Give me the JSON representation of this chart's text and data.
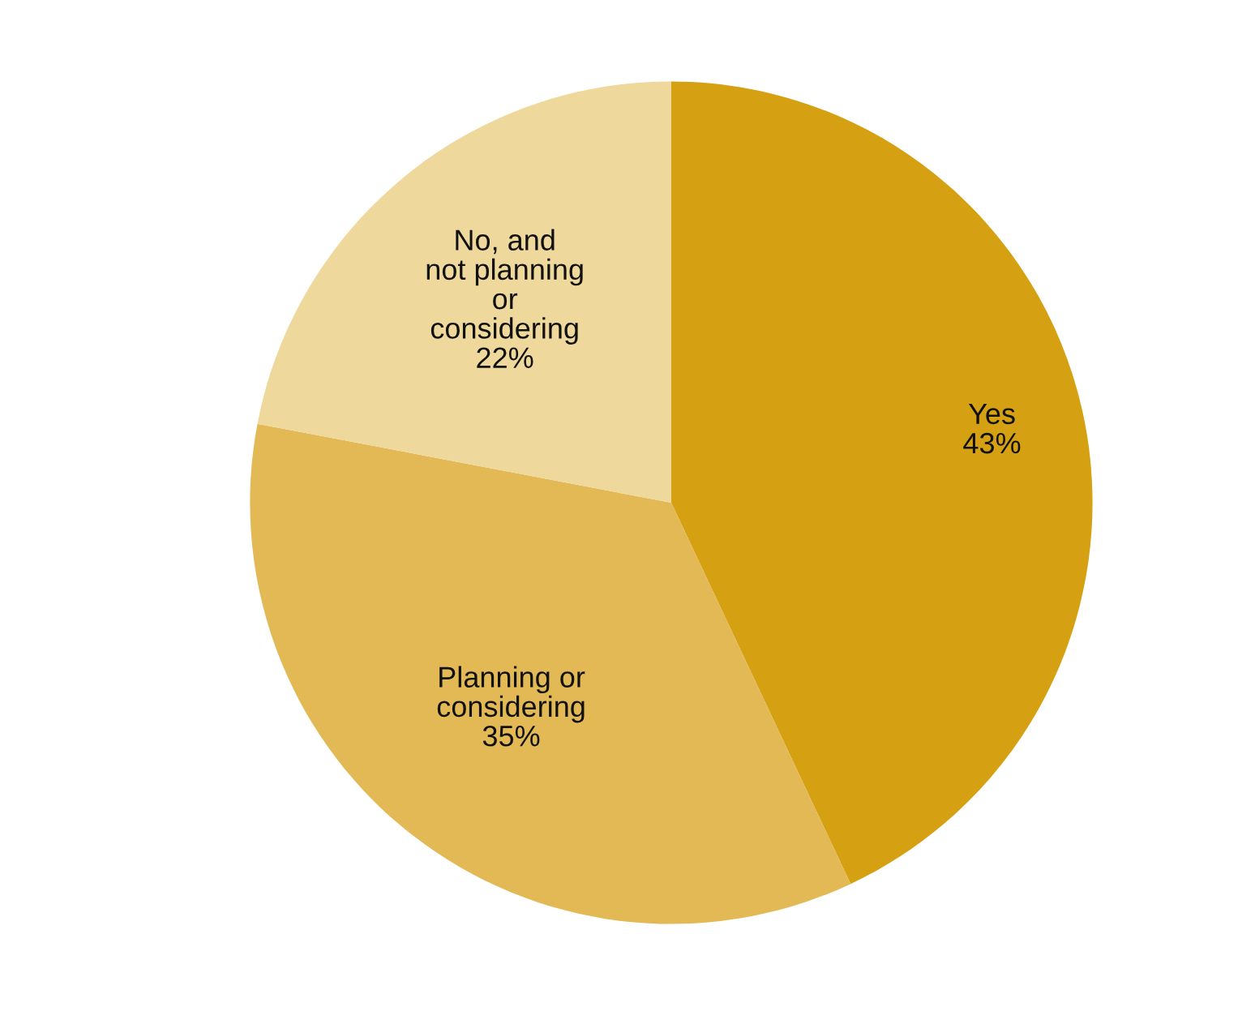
{
  "chart_data": {
    "type": "pie",
    "categories": [
      "Yes",
      "Planning or\nconsidering",
      "No, and\nnot planning\nor\nconsidering"
    ],
    "values": [
      43,
      35,
      22
    ],
    "value_labels": [
      "43%",
      "35%",
      "22%"
    ],
    "colors": [
      "#d5a011",
      "#e2b955",
      "#eed89b"
    ],
    "legend": false
  }
}
